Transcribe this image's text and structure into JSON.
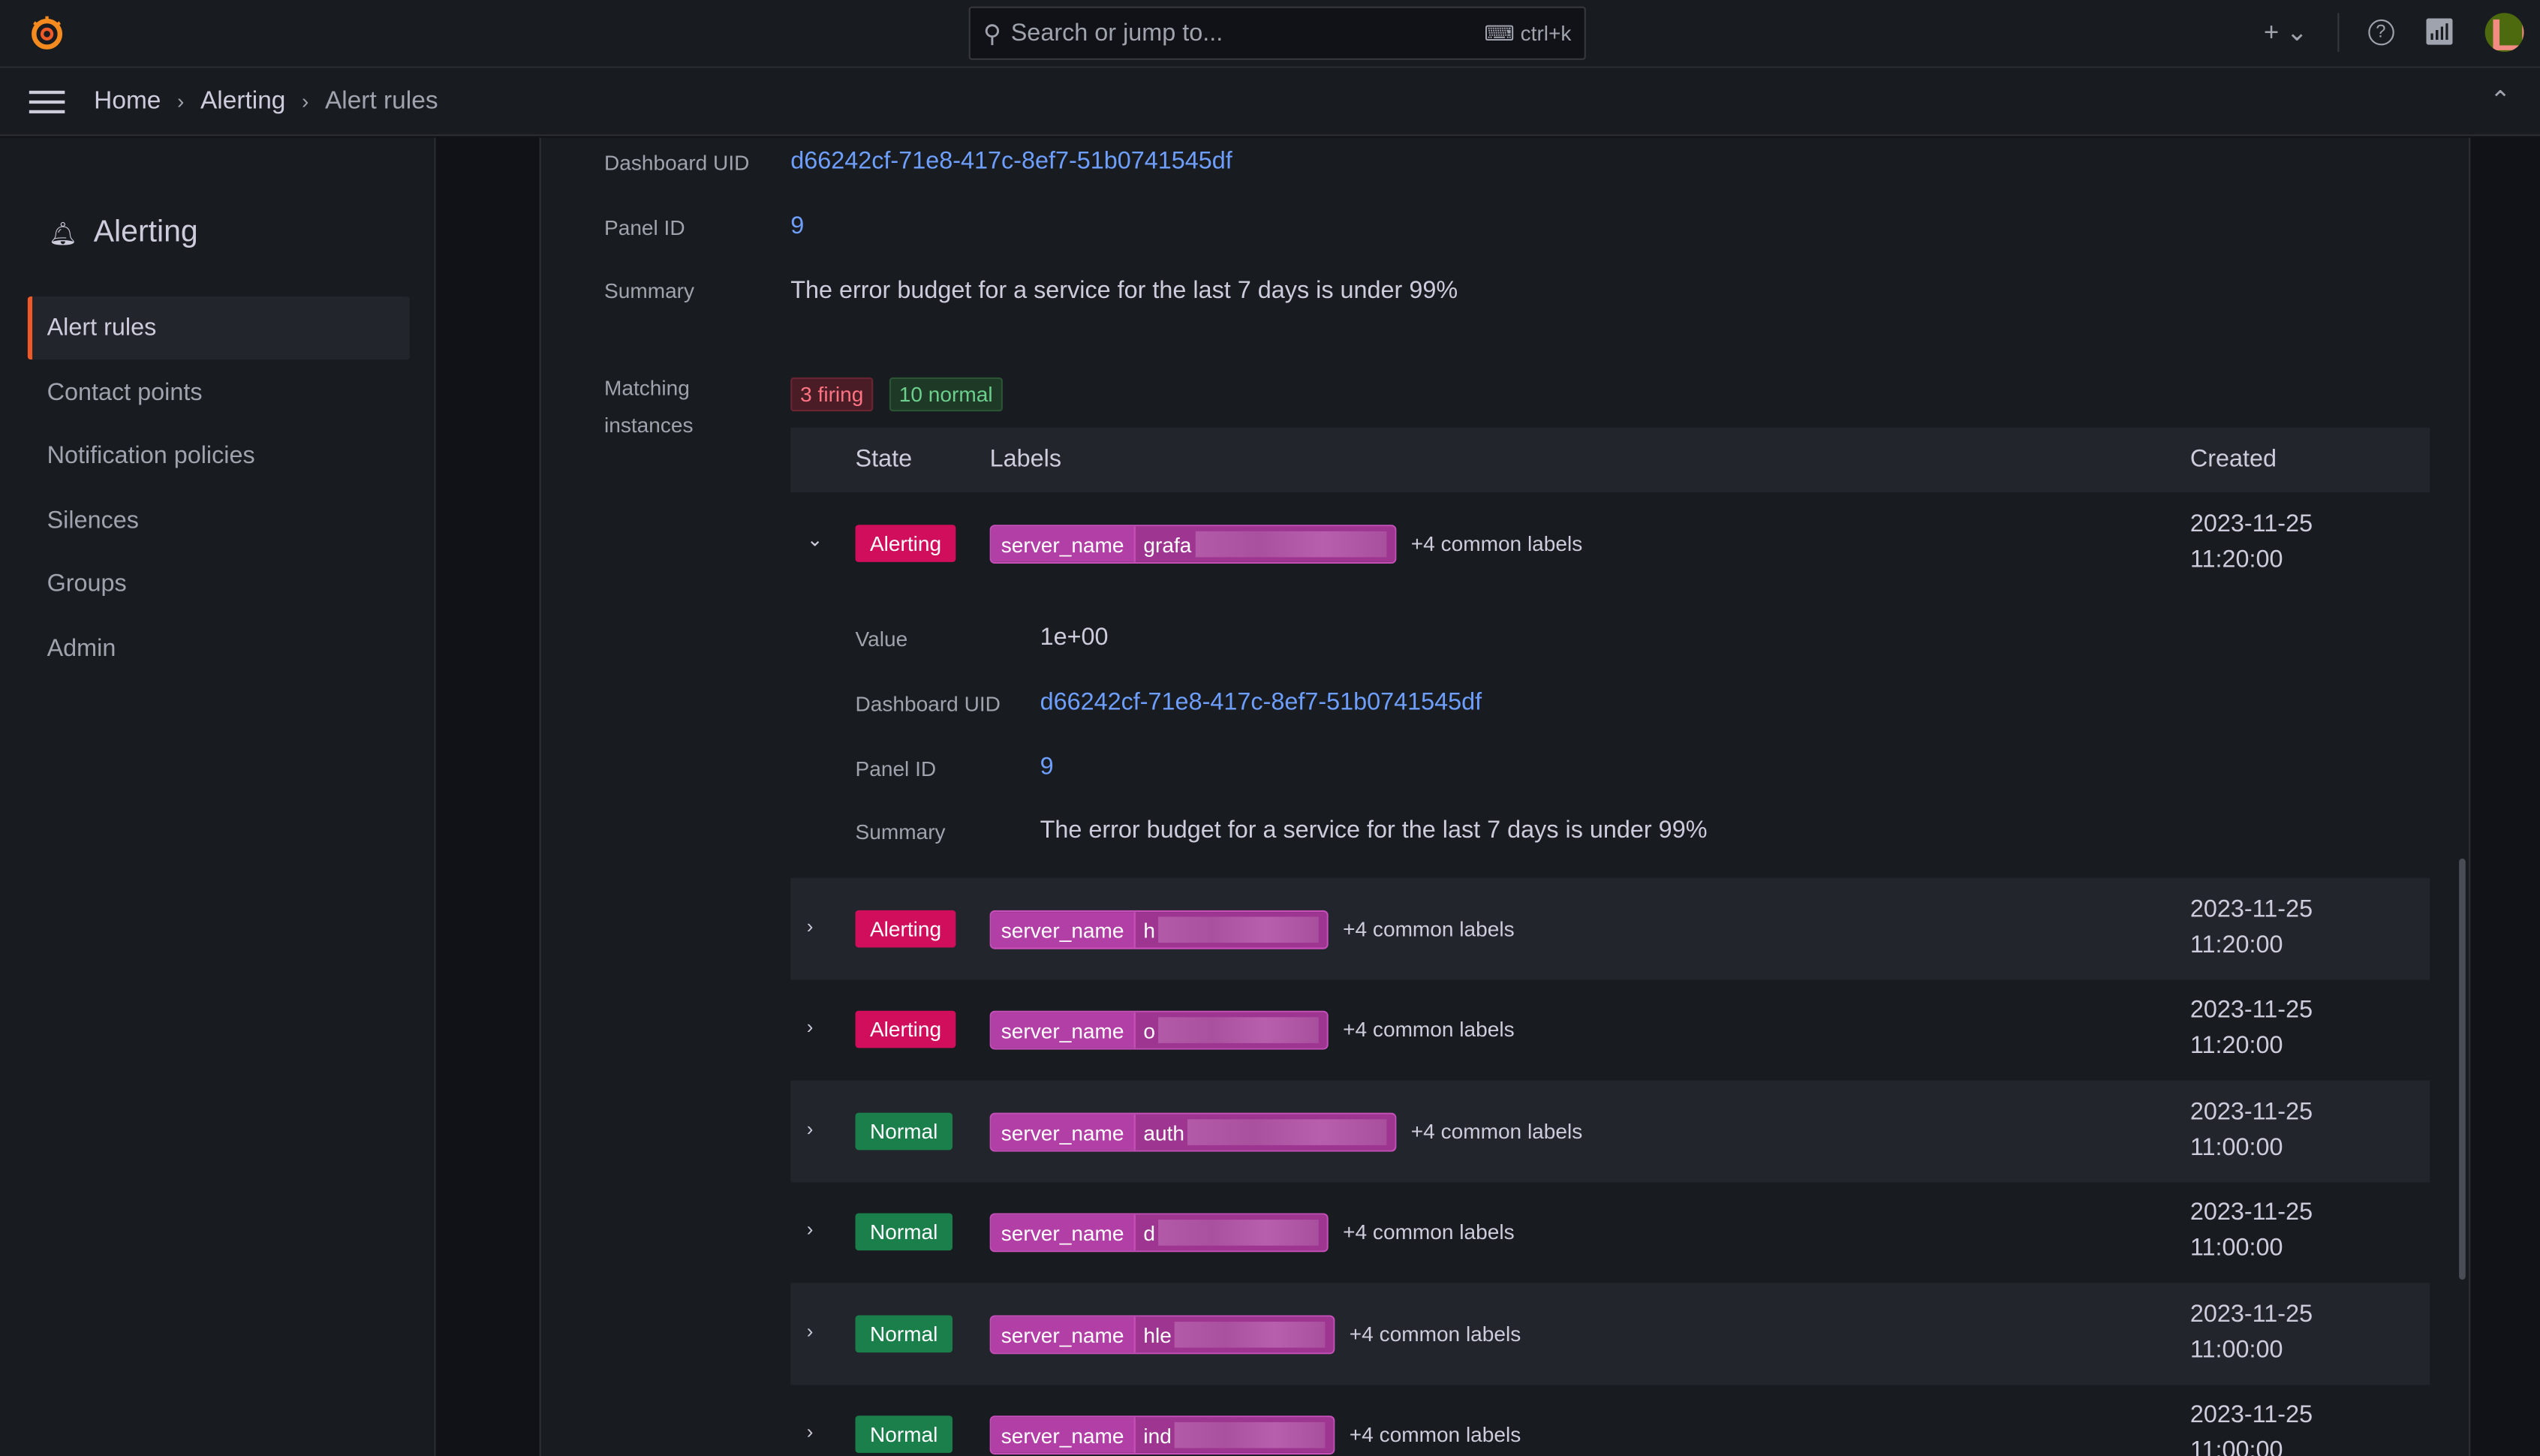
{
  "topbar": {
    "search_placeholder": "Search or jump to...",
    "shortcut": "ctrl+k"
  },
  "breadcrumb": [
    "Home",
    "Alerting",
    "Alert rules"
  ],
  "sidebar": {
    "title": "Alerting",
    "items": [
      "Alert rules",
      "Contact points",
      "Notification policies",
      "Silences",
      "Groups",
      "Admin"
    ],
    "active": "Alert rules"
  },
  "details": {
    "dashboard_uid_label": "Dashboard UID",
    "dashboard_uid": "d66242cf-71e8-417c-8ef7-51b0741545df",
    "panel_id_label": "Panel ID",
    "panel_id": "9",
    "summary_label": "Summary",
    "summary": "The error budget for a service for the last 7 days is under 99%",
    "matching_label": "Matching instances",
    "firing": "3 firing",
    "normal": "10 normal"
  },
  "table": {
    "headers": {
      "state": "State",
      "labels": "Labels",
      "created": "Created"
    },
    "expanded": {
      "value_label": "Value",
      "value": "1e+00",
      "dashboard_uid_label": "Dashboard UID",
      "dashboard_uid": "d66242cf-71e8-417c-8ef7-51b0741545df",
      "panel_id_label": "Panel ID",
      "panel_id": "9",
      "summary_label": "Summary",
      "summary": "The error budget for a service for the last 7 days is under 99%"
    },
    "rows": [
      {
        "state": "Alerting",
        "label_key": "server_name",
        "label_value": "grafa",
        "common": "+4 common labels",
        "date": "2023-11-25",
        "time": "11:20:00"
      },
      {
        "state": "Alerting",
        "label_key": "server_name",
        "label_value": "h",
        "common": "+4 common labels",
        "date": "2023-11-25",
        "time": "11:20:00"
      },
      {
        "state": "Alerting",
        "label_key": "server_name",
        "label_value": "o",
        "common": "+4 common labels",
        "date": "2023-11-25",
        "time": "11:20:00"
      },
      {
        "state": "Normal",
        "label_key": "server_name",
        "label_value": "auth",
        "common": "+4 common labels",
        "date": "2023-11-25",
        "time": "11:00:00"
      },
      {
        "state": "Normal",
        "label_key": "server_name",
        "label_value": "d",
        "common": "+4 common labels",
        "date": "2023-11-25",
        "time": "11:00:00"
      },
      {
        "state": "Normal",
        "label_key": "server_name",
        "label_value": "hle",
        "common": "+4 common labels",
        "date": "2023-11-25",
        "time": "11:00:00"
      },
      {
        "state": "Normal",
        "label_key": "server_name",
        "label_value": "ind",
        "common": "+4 common labels",
        "date": "2023-11-25",
        "time": "11:00:00"
      }
    ]
  },
  "colors": {
    "alerting": "#d10e5c",
    "normal": "#1a7f4b",
    "label": "#b23fa6",
    "link": "#6e9fff",
    "accent": "#f05a28"
  }
}
